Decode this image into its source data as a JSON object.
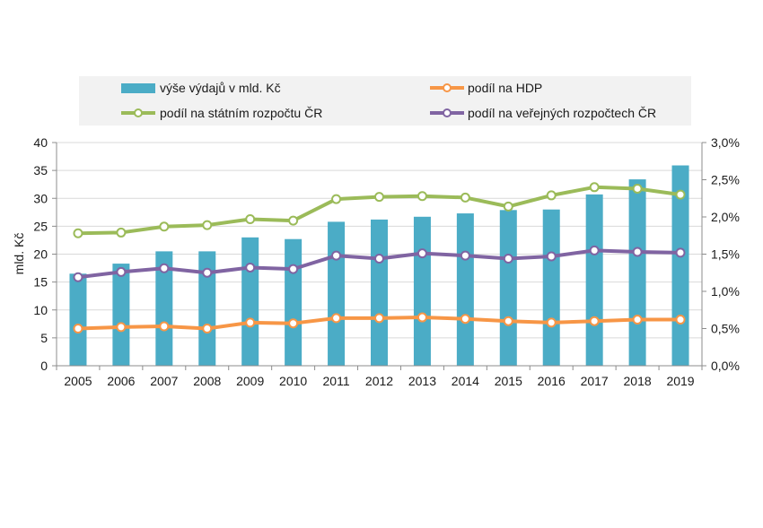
{
  "chart_data": {
    "type": "bar+line",
    "title": "",
    "ylabel": "mld. Kč",
    "y2label": "",
    "ylim": [
      0,
      40
    ],
    "y2lim": [
      0,
      3.0
    ],
    "yticks": [
      "0",
      "5",
      "10",
      "15",
      "20",
      "25",
      "30",
      "35",
      "40"
    ],
    "y2ticks": [
      "0,0%",
      "0,5%",
      "1,0%",
      "1,5%",
      "2,0%",
      "2,5%",
      "3,0%"
    ],
    "categories": [
      "2005",
      "2006",
      "2007",
      "2008",
      "2009",
      "2010",
      "2011",
      "2012",
      "2013",
      "2014",
      "2015",
      "2016",
      "2017",
      "2018",
      "2019"
    ],
    "grid": true,
    "legend_position": "top",
    "series": [
      {
        "name": "výše výdajů v mld. Kč",
        "kind": "bar",
        "axis": "left",
        "color": "#4bacc6",
        "values": [
          16.5,
          18.3,
          20.5,
          20.5,
          23.0,
          22.7,
          25.8,
          26.2,
          26.7,
          27.3,
          27.9,
          28.0,
          30.7,
          33.4,
          35.9
        ]
      },
      {
        "name": "podíl na HDP",
        "kind": "line",
        "axis": "right",
        "color": "#f79646",
        "values": [
          0.5,
          0.52,
          0.53,
          0.5,
          0.58,
          0.57,
          0.64,
          0.64,
          0.65,
          0.63,
          0.6,
          0.58,
          0.6,
          0.62,
          0.62
        ]
      },
      {
        "name": "podíl na státním rozpočtu ČR",
        "kind": "line",
        "axis": "right",
        "color": "#9bbb59",
        "values": [
          1.78,
          1.79,
          1.87,
          1.89,
          1.97,
          1.95,
          2.24,
          2.27,
          2.28,
          2.26,
          2.14,
          2.29,
          2.4,
          2.38,
          2.3
        ]
      },
      {
        "name": "podíl na veřejných rozpočtech ČR",
        "kind": "line",
        "axis": "right",
        "color": "#8064a2",
        "values": [
          1.19,
          1.26,
          1.31,
          1.25,
          1.32,
          1.3,
          1.48,
          1.44,
          1.51,
          1.48,
          1.44,
          1.47,
          1.55,
          1.53,
          1.52
        ]
      }
    ]
  }
}
